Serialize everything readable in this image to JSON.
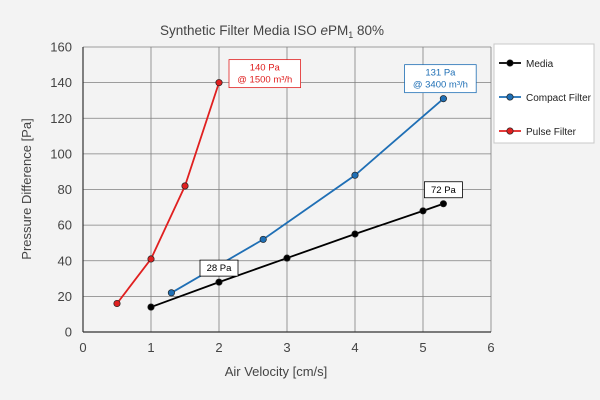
{
  "chart_data": {
    "type": "line",
    "title_main": "Synthetic Filter Media ISO ",
    "title_italic": "e",
    "title_pm": "PM",
    "title_sub": "1",
    "title_end": " 80%",
    "xlabel": "Air Velocity [cm/s]",
    "ylabel": "Pressure Difference [Pa]",
    "xlim": [
      0,
      6
    ],
    "ylim": [
      0,
      160
    ],
    "x_ticks": [
      0,
      1,
      2,
      3,
      4,
      5,
      6
    ],
    "y_ticks": [
      0,
      20,
      40,
      60,
      80,
      100,
      120,
      140,
      160
    ],
    "grid": true,
    "legend_position": "right",
    "series": [
      {
        "name": "Media",
        "color": "#000000",
        "points": [
          [
            1.0,
            14
          ],
          [
            2.0,
            28
          ],
          [
            3.0,
            41.5
          ],
          [
            4.0,
            55
          ],
          [
            5.0,
            68
          ],
          [
            5.3,
            72
          ]
        ]
      },
      {
        "name": "Compact Filter",
        "color": "#1f6fb5",
        "points": [
          [
            1.3,
            22
          ],
          [
            2.65,
            52
          ],
          [
            4.0,
            88
          ],
          [
            5.3,
            131
          ]
        ]
      },
      {
        "name": "Pulse Filter",
        "color": "#e02020",
        "points": [
          [
            0.5,
            16
          ],
          [
            1.0,
            41
          ],
          [
            1.5,
            82
          ],
          [
            2.0,
            140
          ]
        ]
      }
    ],
    "annotations": [
      {
        "series": "Pulse Filter",
        "at": [
          2.0,
          140
        ],
        "lines": [
          "140 Pa",
          "@ 1500 m³/h"
        ],
        "color": "#e02020",
        "boxed": true
      },
      {
        "series": "Compact Filter",
        "at": [
          5.3,
          131
        ],
        "lines": [
          "131 Pa",
          "@ 3400 m³/h"
        ],
        "color": "#1f6fb5",
        "boxed": true
      },
      {
        "series": "Media",
        "at": [
          2.0,
          28
        ],
        "lines": [
          "28 Pa"
        ],
        "color": "#000000",
        "boxed": true
      },
      {
        "series": "Media",
        "at": [
          5.3,
          72
        ],
        "lines": [
          "72 Pa"
        ],
        "color": "#000000",
        "boxed": true
      }
    ]
  }
}
